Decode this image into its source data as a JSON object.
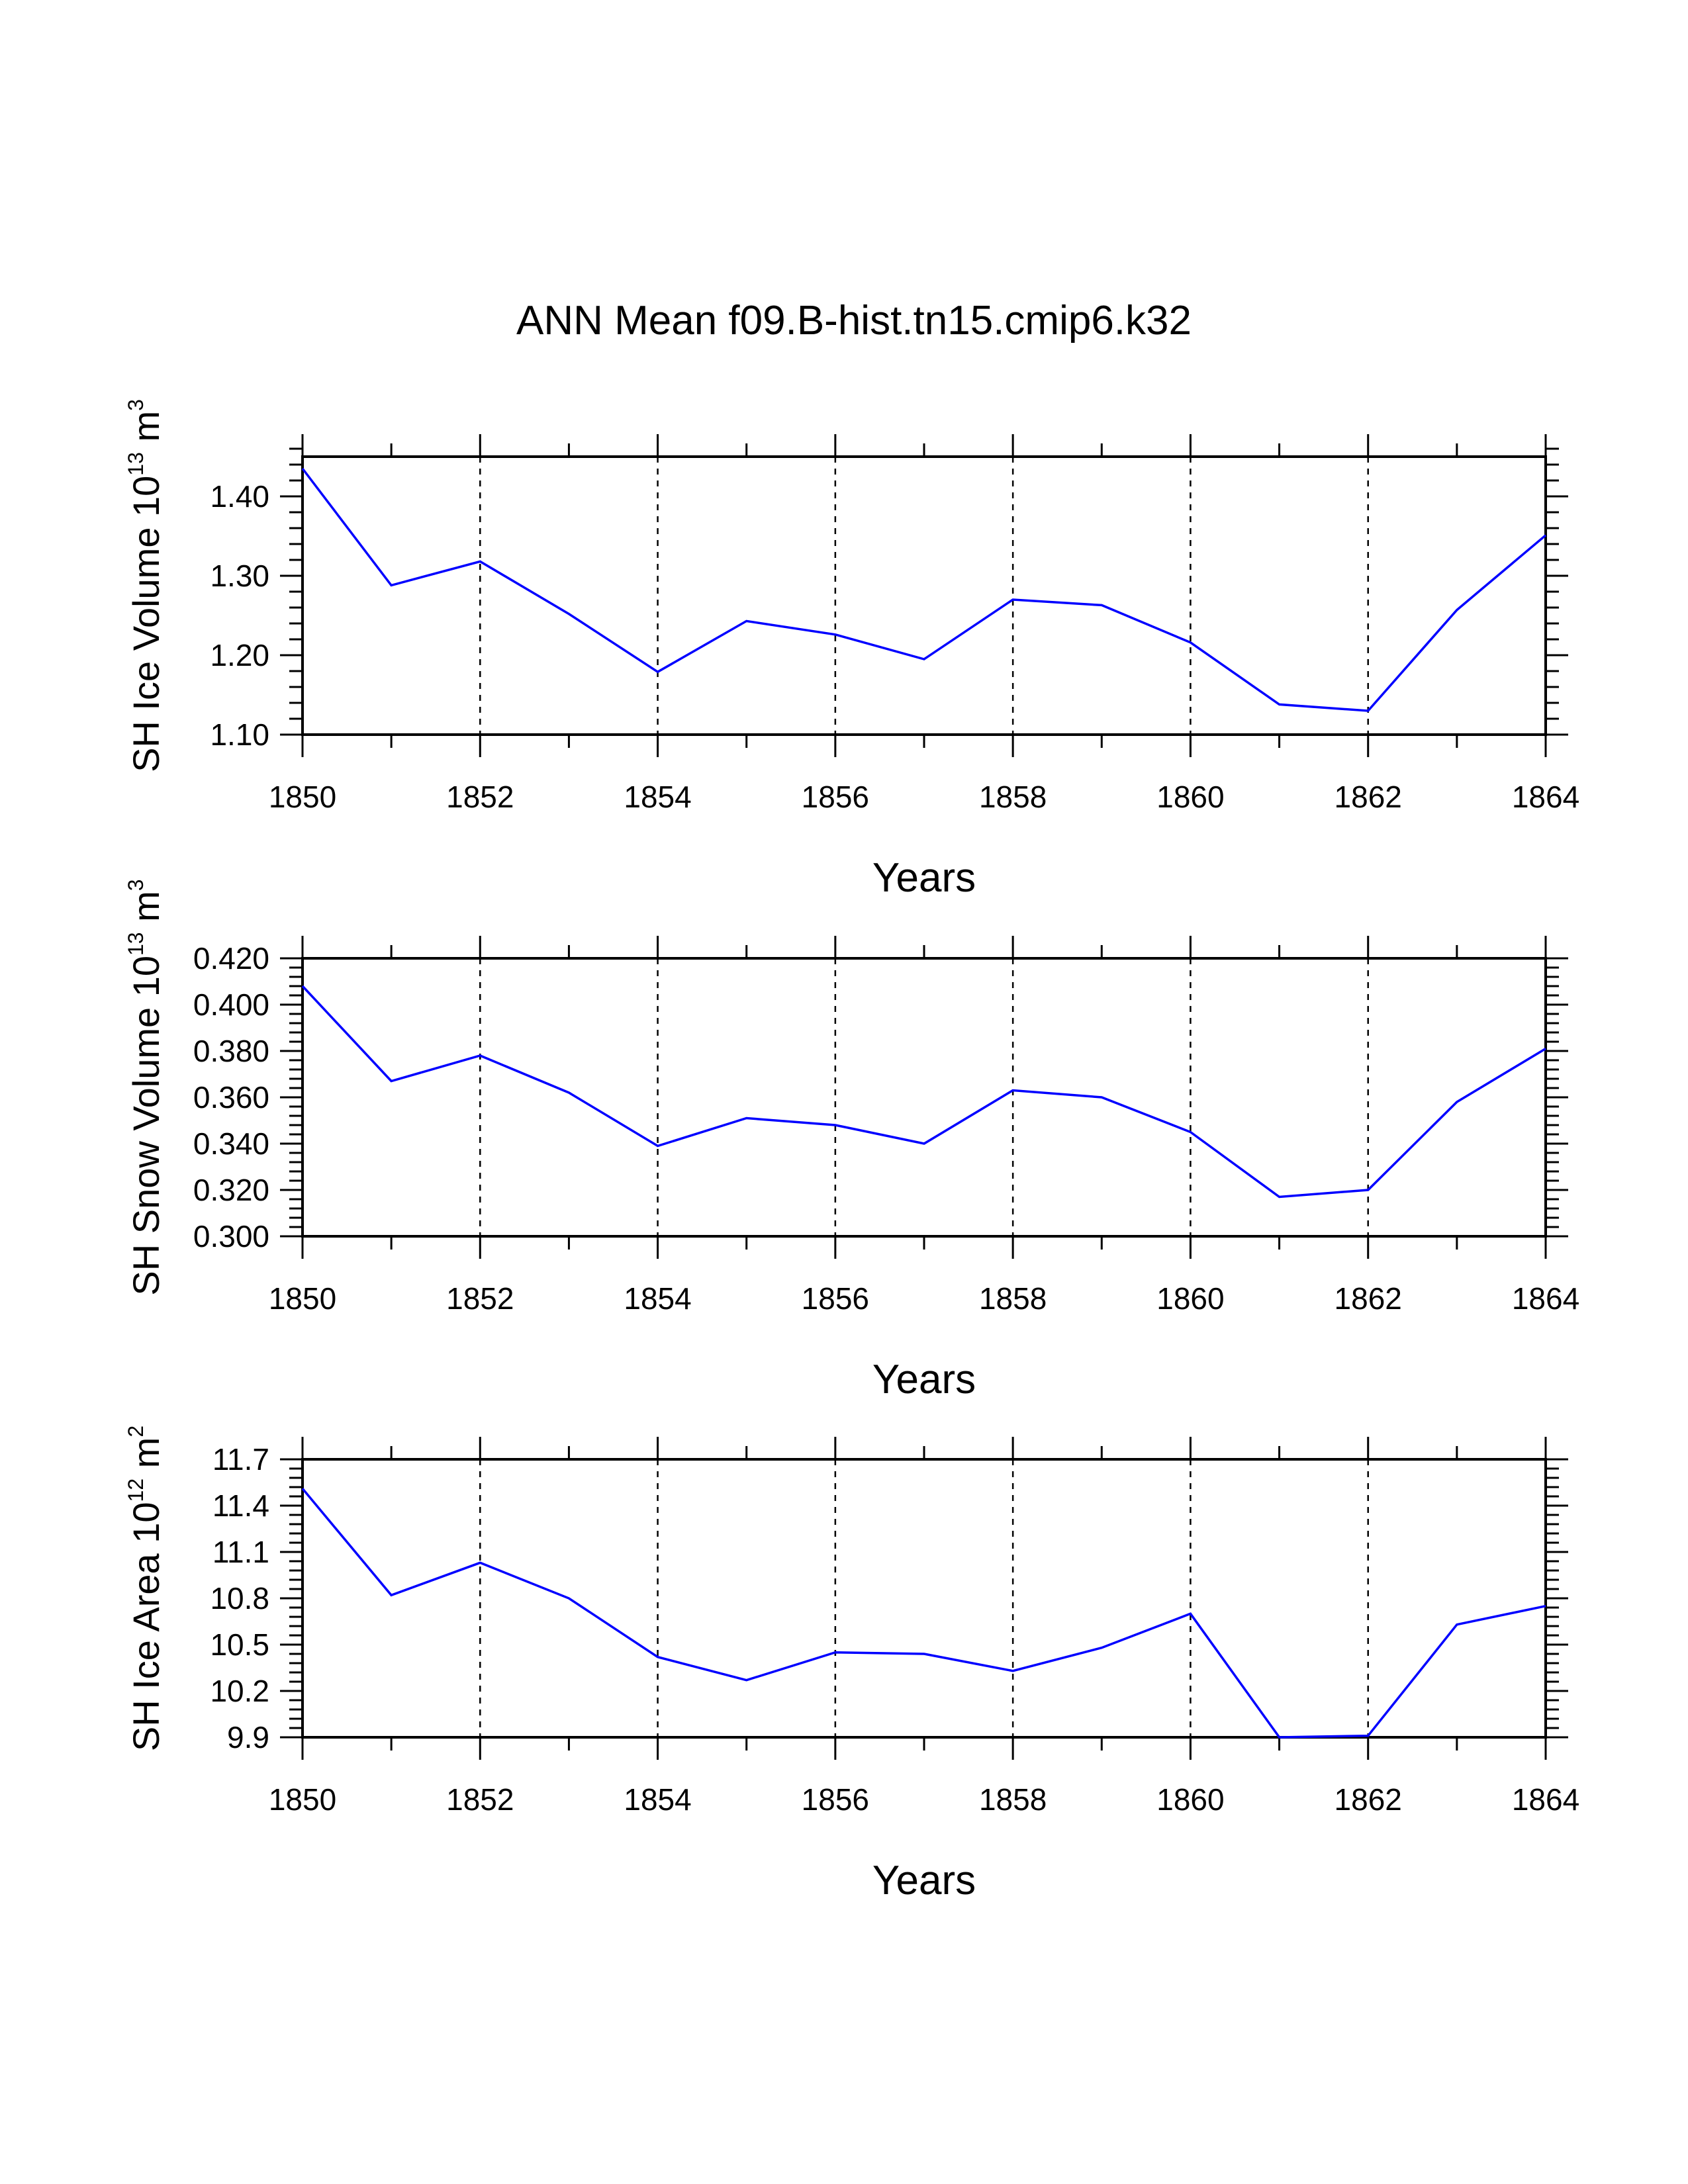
{
  "figure": {
    "title": "ANN Mean f09.B-hist.tn15.cmip6.k32",
    "line_color": "#0000ff"
  },
  "chart_data": [
    {
      "type": "line",
      "title": "",
      "xlabel": "Years",
      "ylabel": {
        "prefix": "SH Ice Volume 10",
        "exponent": "13",
        "unit": "m",
        "unit_exponent": "3"
      },
      "xlim": [
        1850,
        1864
      ],
      "ylim": [
        1.1,
        1.45
      ],
      "x_ticks": [
        1850,
        1852,
        1854,
        1856,
        1858,
        1860,
        1862,
        1864
      ],
      "x_tick_labels": [
        "1850",
        "1852",
        "1854",
        "1856",
        "1858",
        "1860",
        "1862",
        "1864"
      ],
      "y_ticks": [
        1.1,
        1.2,
        1.3,
        1.4
      ],
      "y_tick_labels": [
        "1.10",
        "1.20",
        "1.30",
        "1.40"
      ],
      "grid": "vertical dashed at labeled x ticks",
      "x": [
        1850,
        1851,
        1852,
        1853,
        1854,
        1855,
        1856,
        1857,
        1858,
        1859,
        1860,
        1861,
        1862,
        1863,
        1864
      ],
      "series": [
        {
          "values": [
            1.435,
            1.288,
            1.318,
            1.252,
            1.179,
            1.243,
            1.226,
            1.195,
            1.27,
            1.263,
            1.216,
            1.138,
            1.13,
            1.257,
            1.351
          ]
        }
      ]
    },
    {
      "type": "line",
      "title": "",
      "xlabel": "Years",
      "ylabel": {
        "prefix": "SH Snow Volume 10",
        "exponent": "13",
        "unit": "m",
        "unit_exponent": "3"
      },
      "xlim": [
        1850,
        1864
      ],
      "ylim": [
        0.3,
        0.42
      ],
      "x_ticks": [
        1850,
        1852,
        1854,
        1856,
        1858,
        1860,
        1862,
        1864
      ],
      "x_tick_labels": [
        "1850",
        "1852",
        "1854",
        "1856",
        "1858",
        "1860",
        "1862",
        "1864"
      ],
      "y_ticks": [
        0.3,
        0.32,
        0.34,
        0.36,
        0.38,
        0.4,
        0.42
      ],
      "y_tick_labels": [
        "0.300",
        "0.320",
        "0.340",
        "0.360",
        "0.380",
        "0.400",
        "0.420"
      ],
      "grid": "vertical dashed at labeled x ticks",
      "x": [
        1850,
        1851,
        1852,
        1853,
        1854,
        1855,
        1856,
        1857,
        1858,
        1859,
        1860,
        1861,
        1862,
        1863,
        1864
      ],
      "series": [
        {
          "values": [
            0.408,
            0.367,
            0.378,
            0.362,
            0.339,
            0.351,
            0.348,
            0.34,
            0.363,
            0.36,
            0.345,
            0.317,
            0.32,
            0.358,
            0.381
          ]
        }
      ]
    },
    {
      "type": "line",
      "title": "",
      "xlabel": "Years",
      "ylabel": {
        "prefix": "SH Ice Area 10",
        "exponent": "12",
        "unit": "m",
        "unit_exponent": "2"
      },
      "xlim": [
        1850,
        1864
      ],
      "ylim": [
        9.9,
        11.7
      ],
      "x_ticks": [
        1850,
        1852,
        1854,
        1856,
        1858,
        1860,
        1862,
        1864
      ],
      "x_tick_labels": [
        "1850",
        "1852",
        "1854",
        "1856",
        "1858",
        "1860",
        "1862",
        "1864"
      ],
      "y_ticks": [
        9.9,
        10.2,
        10.5,
        10.8,
        11.1,
        11.4,
        11.7
      ],
      "y_tick_labels": [
        "9.9",
        "10.2",
        "10.5",
        "10.8",
        "11.1",
        "11.4",
        "11.7"
      ],
      "grid": "vertical dashed at labeled x ticks",
      "x": [
        1850,
        1851,
        1852,
        1853,
        1854,
        1855,
        1856,
        1857,
        1858,
        1859,
        1860,
        1861,
        1862,
        1863,
        1864
      ],
      "series": [
        {
          "values": [
            11.51,
            10.82,
            11.03,
            10.8,
            10.42,
            10.27,
            10.45,
            10.44,
            10.33,
            10.48,
            10.7,
            9.9,
            9.91,
            10.63,
            10.75
          ]
        }
      ]
    }
  ]
}
